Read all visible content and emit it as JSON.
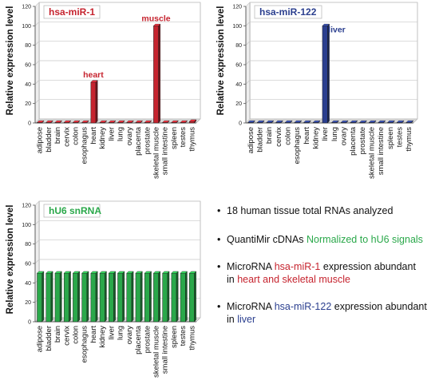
{
  "colors": {
    "red": "#c6242f",
    "blue": "#2b3f8f",
    "green": "#2aa84a",
    "grid": "#c8c8c8",
    "axis": "#555555"
  },
  "chart_data": [
    {
      "type": "bar",
      "title": "hsa-miR-1",
      "title_color": "#c6242f",
      "bar_color": "#c6242f",
      "ylabel": "Relative expression level",
      "ylim": [
        0,
        120
      ],
      "yticks": [
        0,
        20,
        40,
        60,
        80,
        100,
        120
      ],
      "grid": true,
      "categories": [
        "adipose",
        "bladder",
        "brain",
        "cervix",
        "colon",
        "esophagus",
        "heart",
        "kidney",
        "liver",
        "lung",
        "ovary",
        "placenta",
        "prostate",
        "skeletal muscle",
        "small intestine",
        "spleen",
        "testes",
        "thymus"
      ],
      "values": [
        0.5,
        0.5,
        0.5,
        0.5,
        0.5,
        0.5,
        42,
        0.5,
        0.5,
        0.5,
        0.5,
        0.5,
        0.5,
        100,
        0.5,
        0.5,
        0.5,
        1.5
      ],
      "annotations": [
        {
          "category": "heart",
          "text": "heart"
        },
        {
          "category": "skeletal muscle",
          "text": "muscle"
        }
      ]
    },
    {
      "type": "bar",
      "title": "hsa-miR-122",
      "title_color": "#2b3f8f",
      "bar_color": "#2b3f8f",
      "ylabel": "Relative expression level",
      "ylim": [
        0,
        120
      ],
      "yticks": [
        0,
        20,
        40,
        60,
        80,
        100,
        120
      ],
      "grid": true,
      "categories": [
        "adipose",
        "bladder",
        "brain",
        "cervix",
        "colon",
        "esophagus",
        "heart",
        "kidney",
        "liver",
        "lung",
        "ovary",
        "placenta",
        "prostate",
        "skeletal muscle",
        "small intestine",
        "spleen",
        "testes",
        "thymus"
      ],
      "values": [
        0.5,
        0.5,
        0.5,
        0.5,
        0.5,
        0.5,
        0.5,
        0.5,
        100,
        0.5,
        0.5,
        0.5,
        0.5,
        0.5,
        0.5,
        0.5,
        0.5,
        0.5
      ],
      "annotations": [
        {
          "category": "liver",
          "text": "liver"
        }
      ]
    },
    {
      "type": "bar",
      "title": "hU6 snRNA",
      "title_color": "#2aa84a",
      "bar_color": "#2aa84a",
      "ylabel": "Relative expression level",
      "ylim": [
        0,
        120
      ],
      "yticks": [
        0,
        20,
        40,
        60,
        80,
        100,
        120
      ],
      "grid": true,
      "categories": [
        "adipose",
        "bladder",
        "brain",
        "cervix",
        "colon",
        "esophagus",
        "heart",
        "kidney",
        "liver",
        "lung",
        "ovary",
        "placenta",
        "prostate",
        "skeletal muscle",
        "small intestine",
        "spleen",
        "testes",
        "thymus"
      ],
      "values": [
        50,
        50,
        50,
        50,
        50,
        50,
        50,
        50,
        50,
        50,
        50,
        50,
        50,
        50,
        50,
        50,
        50,
        50
      ],
      "annotations": []
    }
  ],
  "notes": {
    "bullet": "•",
    "n1": "18 human tissue total RNAs analyzed",
    "n2_a": "QuantiMir cDNAs ",
    "n2_b": "Normalized to hU6 signals",
    "n3_a": "MicroRNA ",
    "n3_b": "hsa-miR-1",
    "n3_c": " expression abundant",
    "n3_d": "in ",
    "n3_e": "heart and skeletal muscle",
    "n4_a": "MicroRNA ",
    "n4_b": "hsa-miR-122",
    "n4_c": " expression abundant",
    "n4_d": "in ",
    "n4_e": "liver"
  }
}
